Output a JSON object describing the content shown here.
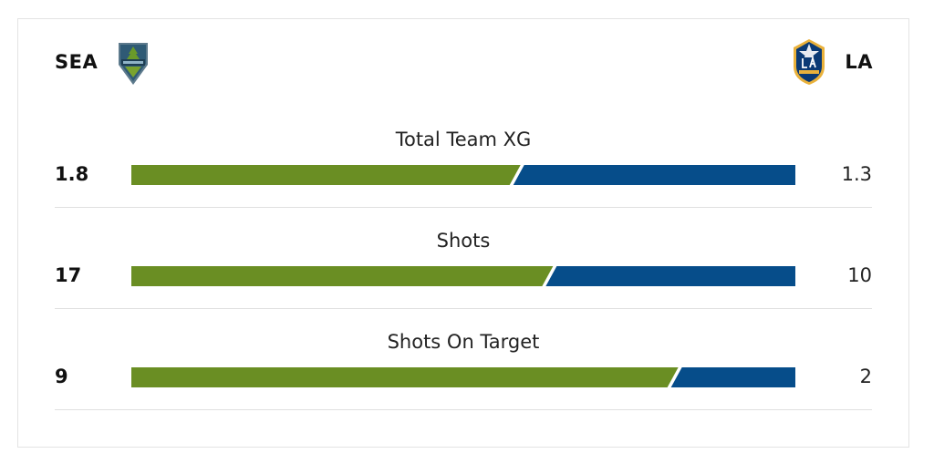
{
  "home": {
    "abbr": "SEA",
    "crest": "sounders-crest-icon",
    "color": "#6a8e23"
  },
  "away": {
    "abbr": "LA",
    "crest": "galaxy-crest-icon",
    "color": "#064d8a"
  },
  "stats": [
    {
      "label": "Total Team XG",
      "home": "1.8",
      "away": "1.3",
      "home_value": 1.8,
      "away_value": 1.3
    },
    {
      "label": "Shots",
      "home": "17",
      "away": "10",
      "home_value": 17,
      "away_value": 10
    },
    {
      "label": "Shots On Target",
      "home": "9",
      "away": "2",
      "home_value": 9,
      "away_value": 2
    }
  ]
}
